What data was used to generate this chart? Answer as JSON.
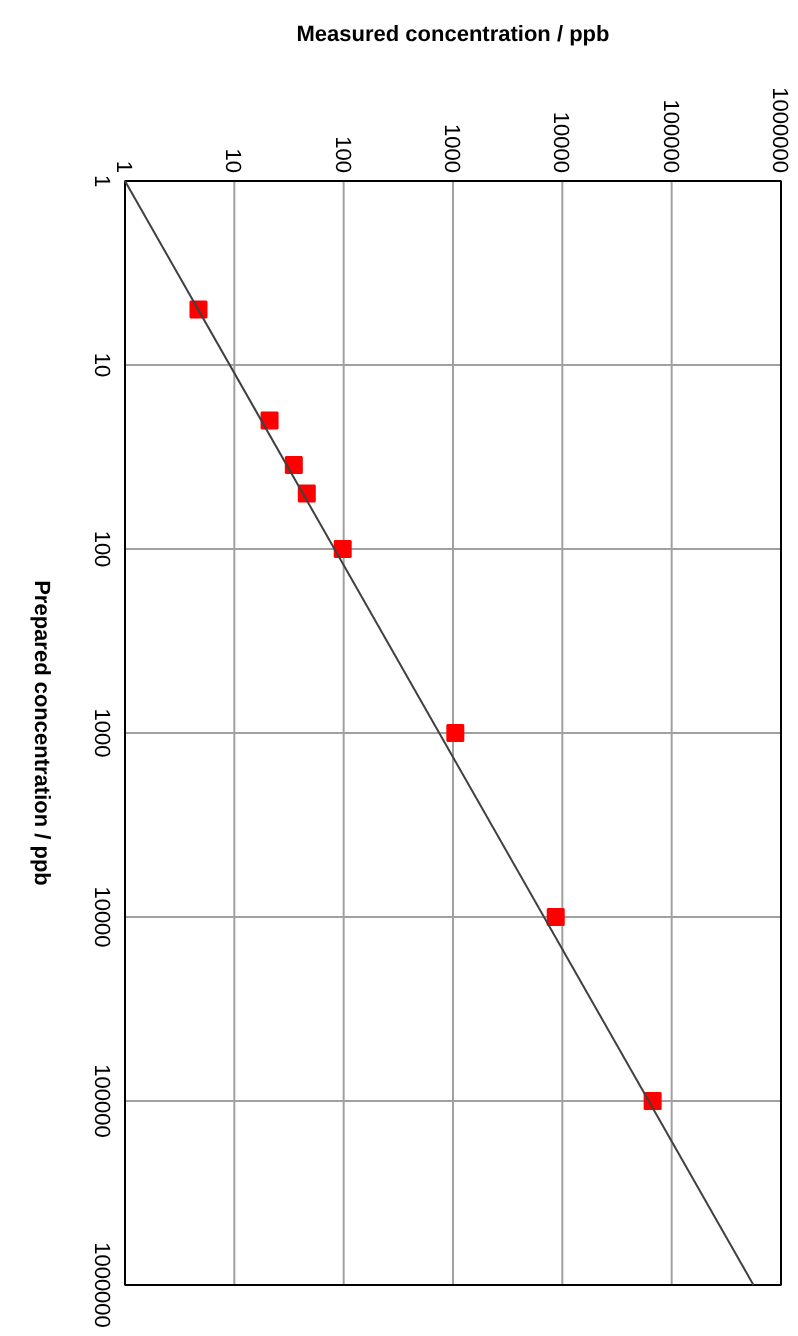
{
  "chart_data": {
    "type": "scatter",
    "xlabel": "Measured concentration / ppb",
    "ylabel": "Prepared concentration / ppb",
    "log": "xy",
    "grid": true,
    "marker": "square",
    "xlim": [
      1,
      1000000
    ],
    "xticks": [
      1,
      10,
      100,
      1000,
      10000,
      100000,
      1000000
    ],
    "ylim": [
      1000000,
      1
    ],
    "yticks": [
      1,
      10,
      100,
      1000,
      10000,
      100000,
      1000000
    ],
    "series": [
      {
        "color": "#ff0000",
        "x": [
          4.7,
          21,
          35,
          46,
          98,
          1050,
          8700,
          67000
        ],
        "values": [
          5,
          20,
          35,
          50,
          100,
          1000,
          10000,
          100000
        ]
      },
      {
        "type": "line",
        "color": "#404040",
        "marker": "none",
        "x": [
          1,
          560000
        ],
        "values": [
          1,
          1000000
        ]
      }
    ]
  }
}
